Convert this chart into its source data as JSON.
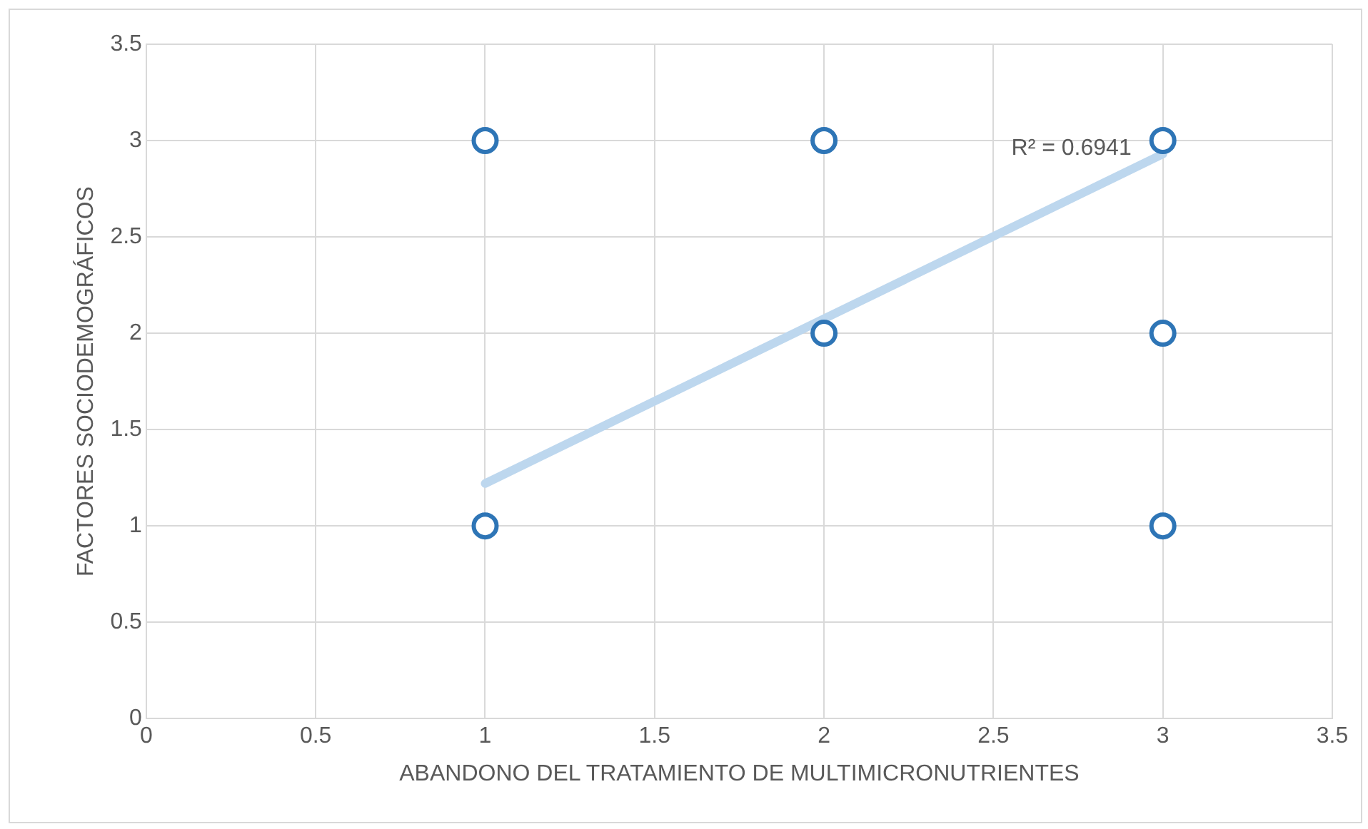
{
  "chart_data": {
    "type": "scatter",
    "xlabel": "ABANDONO DEL TRATAMIENTO DE MULTIMICRONUTRIENTES",
    "ylabel": "FACTORES SOCIODEMOGRÁFICOS",
    "series": [
      {
        "color": "#2e75b6",
        "marker": "circle",
        "x": [
          1,
          2,
          3,
          2,
          3,
          1,
          3
        ],
        "values": [
          3,
          3,
          3,
          2,
          2,
          1,
          1
        ]
      },
      {
        "type": "line",
        "marker": "none",
        "color": "#bdd7ee",
        "x": [
          1,
          3
        ],
        "values": [
          1.22,
          2.93
        ]
      }
    ],
    "annotations": [
      "R² = 0.6941"
    ],
    "xlim": [
      0,
      3.5
    ],
    "xticks": [
      0,
      0.5,
      1,
      1.5,
      2,
      2.5,
      3,
      3.5
    ],
    "ylim": [
      0,
      3.5
    ],
    "yticks": [
      0,
      0.5,
      1,
      1.5,
      2,
      2.5,
      3,
      3.5
    ],
    "grid": true,
    "legend": false
  }
}
